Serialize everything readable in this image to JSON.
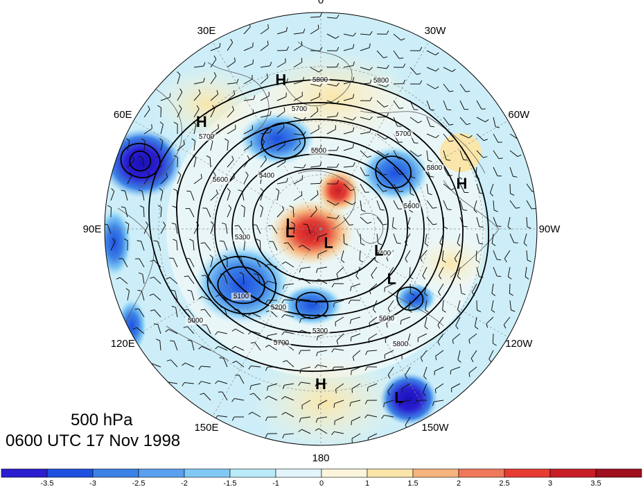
{
  "title": {
    "level": "500 hPa",
    "time": "0600 UTC 17 Nov 1998"
  },
  "longitude_labels": [
    "0",
    "30W",
    "60W",
    "90W",
    "120W",
    "150W",
    "180",
    "150E",
    "120E",
    "90E",
    "60E",
    "30E"
  ],
  "pressure_centers": [
    {
      "label": "H",
      "lon": 15,
      "lat": 40
    },
    {
      "label": "H",
      "lon": 48,
      "lat": 38
    },
    {
      "label": "H",
      "lon": -72,
      "lat": 42
    },
    {
      "label": "H",
      "lon": 180,
      "lat": 40
    },
    {
      "label": "L",
      "lon": -155,
      "lat": 30
    },
    {
      "label": "L",
      "lon": -110,
      "lat": 70
    },
    {
      "label": "L",
      "lon": 80,
      "lat": 80
    },
    {
      "label": "L",
      "lon": 95,
      "lat": 80
    },
    {
      "label": "L",
      "lon": -150,
      "lat": 85
    },
    {
      "label": "L",
      "lon": -125,
      "lat": 62
    }
  ],
  "contour_labels": [
    "5800",
    "5800",
    "5700",
    "5700",
    "5700",
    "5600",
    "5500",
    "5400",
    "5400",
    "5300",
    "5300",
    "5200",
    "5100",
    "5000",
    "5600",
    "5600",
    "5700",
    "5800",
    "5800"
  ],
  "colorbar": {
    "ticks": [
      "-3.5",
      "-3",
      "-2.5",
      "-2",
      "-1.5",
      "-1",
      "0",
      "1",
      "1.5",
      "2",
      "2.5",
      "3",
      "3.5"
    ],
    "colors": [
      "#2a1ed0",
      "#1e50e0",
      "#3c82e6",
      "#5aa0f0",
      "#82c8f5",
      "#b9ebf8",
      "#e1f5fa",
      "#faf5dc",
      "#fae6aa",
      "#f5b47d",
      "#f0785a",
      "#e63c32",
      "#c81e28",
      "#a00f1e"
    ]
  }
}
